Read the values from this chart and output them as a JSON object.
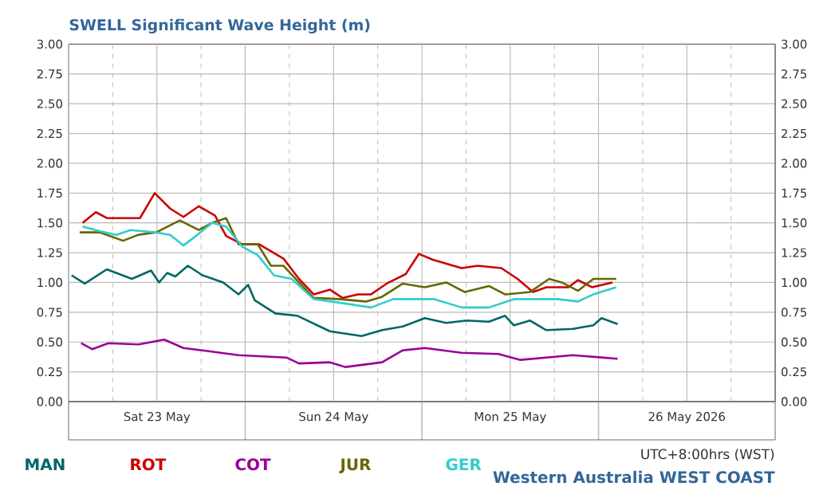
{
  "chart_data": {
    "type": "line",
    "title": "SWELL Significant Wave Height (m)",
    "annotations": [
      "UTC+8:00hrs (WST)",
      "Western Australia WEST COAST"
    ],
    "xlim": [
      "2026-05-23T00:00",
      "2026-05-27T00:00"
    ],
    "xticks": [
      {
        "value": "2026-05-23T00:00",
        "label": null
      },
      {
        "value": "2026-05-23T06:00",
        "label": null
      },
      {
        "value": "2026-05-23T12:00",
        "label": "Sat 23 May"
      },
      {
        "value": "2026-05-23T18:00",
        "label": null
      },
      {
        "value": "2026-05-24T00:00",
        "label": null
      },
      {
        "value": "2026-05-24T06:00",
        "label": null
      },
      {
        "value": "2026-05-24T12:00",
        "label": "Sun 24 May"
      },
      {
        "value": "2026-05-24T18:00",
        "label": null
      },
      {
        "value": "2026-05-25T00:00",
        "label": null
      },
      {
        "value": "2026-05-25T06:00",
        "label": null
      },
      {
        "value": "2026-05-25T12:00",
        "label": "Mon 25 May"
      },
      {
        "value": "2026-05-25T18:00",
        "label": null
      },
      {
        "value": "2026-05-26T00:00",
        "label": null
      },
      {
        "value": "2026-05-26T06:00",
        "label": null
      },
      {
        "value": "2026-05-26T12:00",
        "label": "26 May 2026"
      },
      {
        "value": "2026-05-26T18:00",
        "label": null
      },
      {
        "value": "2026-05-27T00:00",
        "label": null
      }
    ],
    "ylim": [
      0,
      3
    ],
    "yticks": [
      {
        "value": 0,
        "label": "0.00"
      },
      {
        "value": 0.25,
        "label": "0.25"
      },
      {
        "value": 0.5,
        "label": "0.50"
      },
      {
        "value": 0.75,
        "label": "0.75"
      },
      {
        "value": 1,
        "label": "1.00"
      },
      {
        "value": 1.25,
        "label": "1.25"
      },
      {
        "value": 1.5,
        "label": "1.50"
      },
      {
        "value": 1.75,
        "label": "1.75"
      },
      {
        "value": 2,
        "label": "2.00"
      },
      {
        "value": 2.25,
        "label": "2.25"
      },
      {
        "value": 2.5,
        "label": "2.50"
      },
      {
        "value": 2.75,
        "label": "2.75"
      },
      {
        "value": 3,
        "label": "3.00"
      }
    ],
    "y2lim": [
      0,
      3
    ],
    "y2ticks": [
      {
        "value": 0,
        "label": "0.00"
      },
      {
        "value": 0.25,
        "label": "0.25"
      },
      {
        "value": 0.5,
        "label": "0.50"
      },
      {
        "value": 0.75,
        "label": "0.75"
      },
      {
        "value": 1,
        "label": "1.00"
      },
      {
        "value": 1.25,
        "label": "1.25"
      },
      {
        "value": 1.5,
        "label": "1.50"
      },
      {
        "value": 1.75,
        "label": "1.75"
      },
      {
        "value": 2,
        "label": "2.00"
      },
      {
        "value": 2.25,
        "label": "2.25"
      },
      {
        "value": 2.5,
        "label": "2.50"
      },
      {
        "value": 2.75,
        "label": "2.75"
      },
      {
        "value": 3,
        "label": "3.00"
      }
    ],
    "grid": true,
    "legend": "bottom",
    "marker": "none",
    "line_style": "solid",
    "series": [
      {
        "name": "MAN",
        "color": "#006666",
        "x": [
          "2026-05-23T00:24",
          "2026-05-23T02:12",
          "2026-05-23T05:12",
          "2026-05-23T08:36",
          "2026-05-23T11:12",
          "2026-05-23T12:18",
          "2026-05-23T13:24",
          "2026-05-23T14:30",
          "2026-05-23T16:12",
          "2026-05-23T18:12",
          "2026-05-23T21:00",
          "2026-05-23T23:06",
          "2026-05-24T00:24",
          "2026-05-24T01:18",
          "2026-05-24T04:06",
          "2026-05-24T07:06",
          "2026-05-24T11:30",
          "2026-05-24T15:48",
          "2026-05-24T18:36",
          "2026-05-24T21:24",
          "2026-05-25T00:24",
          "2026-05-25T03:18",
          "2026-05-25T06:06",
          "2026-05-25T09:06",
          "2026-05-25T11:18",
          "2026-05-25T12:30",
          "2026-05-25T14:42",
          "2026-05-25T16:54",
          "2026-05-25T20:30",
          "2026-05-25T23:18",
          "2026-05-26T00:24",
          "2026-05-26T02:36"
        ],
        "values": [
          1.06,
          0.99,
          1.11,
          1.03,
          1.1,
          1.0,
          1.08,
          1.05,
          1.14,
          1.06,
          1.0,
          0.9,
          0.98,
          0.85,
          0.74,
          0.72,
          0.59,
          0.55,
          0.6,
          0.63,
          0.7,
          0.66,
          0.68,
          0.67,
          0.72,
          0.64,
          0.68,
          0.6,
          0.61,
          0.64,
          0.7,
          0.65
        ]
      },
      {
        "name": "ROT",
        "color": "#cc0000",
        "x": [
          "2026-05-23T01:54",
          "2026-05-23T03:42",
          "2026-05-23T05:12",
          "2026-05-23T09:42",
          "2026-05-23T11:42",
          "2026-05-23T13:48",
          "2026-05-23T15:36",
          "2026-05-23T17:42",
          "2026-05-23T19:54",
          "2026-05-23T21:24",
          "2026-05-23T23:36",
          "2026-05-24T01:54",
          "2026-05-24T05:12",
          "2026-05-24T07:18",
          "2026-05-24T09:18",
          "2026-05-24T11:30",
          "2026-05-24T13:12",
          "2026-05-24T15:18",
          "2026-05-24T17:06",
          "2026-05-24T19:12",
          "2026-05-24T21:48",
          "2026-05-24T23:36",
          "2026-05-25T01:30",
          "2026-05-25T05:24",
          "2026-05-25T07:36",
          "2026-05-25T10:48",
          "2026-05-25T13:00",
          "2026-05-25T15:06",
          "2026-05-25T16:54",
          "2026-05-25T19:54",
          "2026-05-25T21:12",
          "2026-05-25T23:06",
          "2026-05-26T01:54"
        ],
        "values": [
          1.5,
          1.59,
          1.54,
          1.54,
          1.75,
          1.62,
          1.55,
          1.64,
          1.56,
          1.39,
          1.32,
          1.32,
          1.2,
          1.03,
          0.9,
          0.94,
          0.87,
          0.9,
          0.9,
          0.99,
          1.07,
          1.24,
          1.19,
          1.12,
          1.14,
          1.12,
          1.03,
          0.92,
          0.96,
          0.96,
          1.02,
          0.96,
          1.0
        ]
      },
      {
        "name": "COT",
        "color": "#990099",
        "x": [
          "2026-05-23T01:42",
          "2026-05-23T03:12",
          "2026-05-23T05:24",
          "2026-05-23T09:30",
          "2026-05-23T13:00",
          "2026-05-23T15:36",
          "2026-05-23T18:12",
          "2026-05-23T23:06",
          "2026-05-24T05:36",
          "2026-05-24T07:18",
          "2026-05-24T11:30",
          "2026-05-24T13:36",
          "2026-05-24T18:36",
          "2026-05-24T21:24",
          "2026-05-25T00:24",
          "2026-05-25T05:24",
          "2026-05-25T10:24",
          "2026-05-25T13:24",
          "2026-05-25T20:30",
          "2026-05-26T02:36"
        ],
        "values": [
          0.49,
          0.44,
          0.49,
          0.48,
          0.52,
          0.45,
          0.43,
          0.39,
          0.37,
          0.32,
          0.33,
          0.29,
          0.33,
          0.43,
          0.45,
          0.41,
          0.4,
          0.35,
          0.39,
          0.36
        ]
      },
      {
        "name": "JUR",
        "color": "#666600",
        "x": [
          "2026-05-23T01:30",
          "2026-05-23T04:18",
          "2026-05-23T07:24",
          "2026-05-23T09:30",
          "2026-05-23T11:54",
          "2026-05-23T15:06",
          "2026-05-23T17:42",
          "2026-05-23T19:30",
          "2026-05-23T21:24",
          "2026-05-23T23:06",
          "2026-05-24T01:42",
          "2026-05-24T03:30",
          "2026-05-24T05:12",
          "2026-05-24T07:18",
          "2026-05-24T09:18",
          "2026-05-24T12:48",
          "2026-05-24T16:24",
          "2026-05-24T18:36",
          "2026-05-24T21:24",
          "2026-05-25T00:24",
          "2026-05-25T03:18",
          "2026-05-25T05:48",
          "2026-05-25T09:06",
          "2026-05-25T11:18",
          "2026-05-25T14:42",
          "2026-05-25T17:18",
          "2026-05-25T19:00",
          "2026-05-25T21:12",
          "2026-05-25T23:18",
          "2026-05-26T02:24"
        ],
        "values": [
          1.42,
          1.42,
          1.35,
          1.4,
          1.42,
          1.52,
          1.44,
          1.5,
          1.54,
          1.32,
          1.32,
          1.14,
          1.14,
          1.0,
          0.87,
          0.86,
          0.84,
          0.88,
          0.99,
          0.96,
          1.0,
          0.92,
          0.97,
          0.9,
          0.92,
          1.03,
          1.0,
          0.93,
          1.03,
          1.03
        ]
      },
      {
        "name": "GER",
        "color": "#33cccc",
        "x": [
          "2026-05-23T01:54",
          "2026-05-23T04:18",
          "2026-05-23T06:30",
          "2026-05-23T08:24",
          "2026-05-23T11:54",
          "2026-05-23T13:48",
          "2026-05-23T15:36",
          "2026-05-23T17:18",
          "2026-05-23T19:30",
          "2026-05-23T21:24",
          "2026-05-23T23:36",
          "2026-05-24T01:42",
          "2026-05-24T03:54",
          "2026-05-24T06:18",
          "2026-05-24T09:18",
          "2026-05-24T12:48",
          "2026-05-24T17:06",
          "2026-05-24T20:06",
          "2026-05-25T01:42",
          "2026-05-25T05:24",
          "2026-05-25T09:06",
          "2026-05-25T12:30",
          "2026-05-25T18:24",
          "2026-05-25T21:12",
          "2026-05-25T23:18",
          "2026-05-26T02:24"
        ],
        "values": [
          1.47,
          1.43,
          1.4,
          1.44,
          1.42,
          1.4,
          1.31,
          1.39,
          1.5,
          1.47,
          1.3,
          1.23,
          1.06,
          1.03,
          0.86,
          0.83,
          0.79,
          0.86,
          0.86,
          0.79,
          0.79,
          0.86,
          0.86,
          0.84,
          0.9,
          0.96
        ]
      }
    ]
  }
}
